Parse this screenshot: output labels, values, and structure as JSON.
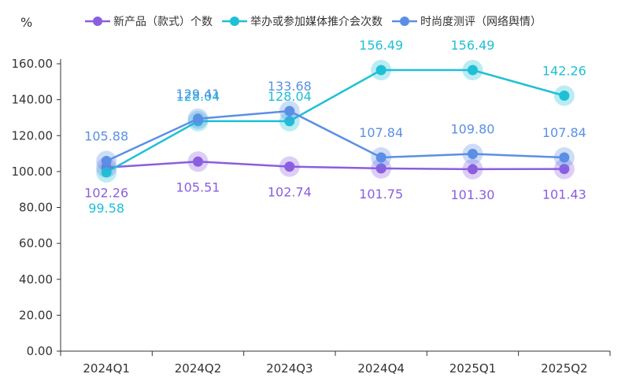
{
  "chart_data": {
    "type": "line",
    "ylabel": "%",
    "ylim": [
      0,
      160
    ],
    "yticks": [
      "0.00",
      "20.00",
      "40.00",
      "60.00",
      "80.00",
      "100.00",
      "120.00",
      "140.00",
      "160.00"
    ],
    "categories": [
      "2024Q1",
      "2024Q2",
      "2024Q3",
      "2024Q4",
      "2025Q1",
      "2025Q2"
    ],
    "grid": false,
    "legend_position": "top",
    "series": [
      {
        "name": "新产品（款式）个数",
        "color": "#8a5ee0",
        "values": [
          102.26,
          105.51,
          102.74,
          101.75,
          101.3,
          101.43
        ],
        "labels": [
          "102.26",
          "105.51",
          "102.74",
          "101.75",
          "101.30",
          "101.43"
        ]
      },
      {
        "name": "举办或参加媒体推介会次数",
        "color": "#1ec0d6",
        "values": [
          99.58,
          128.04,
          128.04,
          156.49,
          156.49,
          142.26
        ],
        "labels": [
          "99.58",
          "128.04",
          "128.04",
          "156.49",
          "156.49",
          "142.26"
        ]
      },
      {
        "name": "时尚度测评（网络舆情）",
        "color": "#5b8fe6",
        "values": [
          105.88,
          129.41,
          133.68,
          107.84,
          109.8,
          107.84
        ],
        "labels": [
          "105.88",
          "129.41",
          "133.68",
          "107.84",
          "109.80",
          "107.84"
        ]
      }
    ]
  }
}
